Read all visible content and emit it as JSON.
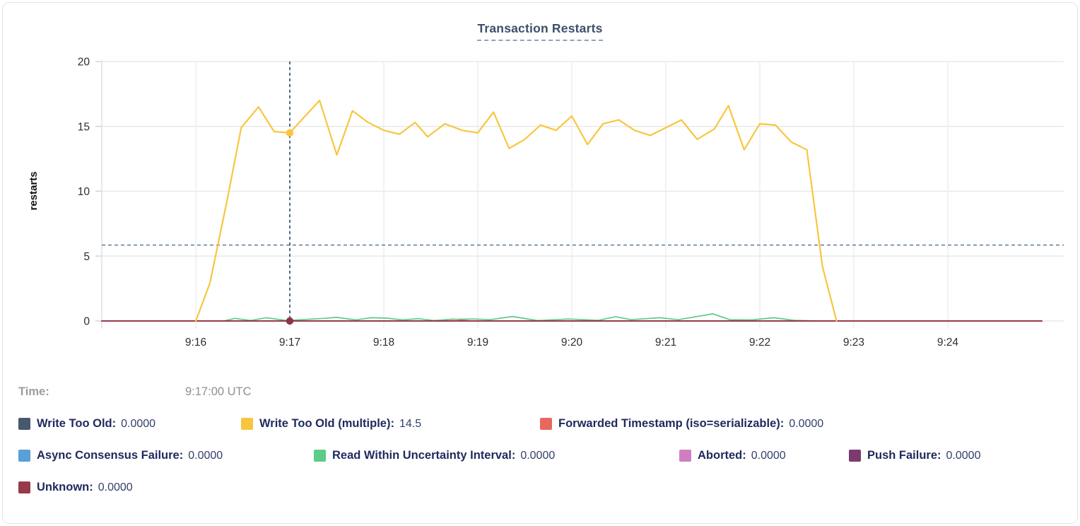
{
  "header": {
    "title": "Transaction Restarts"
  },
  "tooltip": {
    "time_label": "Time:",
    "time_value": "9:17:00 UTC"
  },
  "colors": {
    "write_too_old": "#475970",
    "write_too_old_multiple": "#f8c63e",
    "forwarded_timestamp": "#e8685f",
    "async_consensus_failure": "#5a9fd6",
    "read_within_uncertainty": "#5ecb86",
    "aborted": "#cf7fc1",
    "push_failure": "#7c3a70",
    "unknown": "#96394a",
    "crosshair_vertical": "#3c5a74",
    "crosshair_horizontal": "#6f8cab",
    "gridline": "#e9e9e9",
    "axis_line": "#e0e0e0"
  },
  "legend": {
    "rows": [
      [
        {
          "label": "Write Too Old:",
          "value": "0.0000",
          "color": "#475970"
        },
        {
          "label": "Write Too Old (multiple):",
          "value": "14.5",
          "color": "#f8c63e"
        },
        {
          "label": "Forwarded Timestamp (iso=serializable):",
          "value": "0.0000",
          "color": "#e8685f"
        }
      ],
      [
        {
          "label": "Async Consensus Failure:",
          "value": "0.0000",
          "color": "#5a9fd6"
        },
        {
          "label": "Read Within Uncertainty Interval:",
          "value": "0.0000",
          "color": "#5ecb86"
        },
        {
          "label": "Aborted:",
          "value": "0.0000",
          "color": "#cf7fc1"
        },
        {
          "label": "Push Failure:",
          "value": "0.0000",
          "color": "#7c3a70"
        }
      ],
      [
        {
          "label": "Unknown:",
          "value": "0.0000",
          "color": "#96394a"
        }
      ]
    ]
  },
  "chart_data": {
    "type": "line",
    "title": "Transaction Restarts",
    "xlabel": "",
    "ylabel": "restarts",
    "ylim": [
      0,
      20
    ],
    "y_ticks": [
      0,
      5,
      10,
      15,
      20
    ],
    "grid": true,
    "x_axis_note": "t = seconds after 9:15:00 UTC; plot domain 9:15:00 - ~9:25:10",
    "x_ticks": [
      {
        "t": 60,
        "label": "9:16"
      },
      {
        "t": 120,
        "label": "9:17"
      },
      {
        "t": 180,
        "label": "9:18"
      },
      {
        "t": 240,
        "label": "9:19"
      },
      {
        "t": 300,
        "label": "9:20"
      },
      {
        "t": 360,
        "label": "9:21"
      },
      {
        "t": 420,
        "label": "9:22"
      },
      {
        "t": 480,
        "label": "9:23"
      },
      {
        "t": 540,
        "label": "9:24"
      }
    ],
    "crosshair": {
      "x_t": 120,
      "x_time": "9:17:00 UTC",
      "h_value": 5.85
    },
    "markers": [
      {
        "t": 120,
        "v": 14.5,
        "color": "#f8c63e",
        "series": "write_too_old_multiple"
      },
      {
        "t": 120,
        "v": 0,
        "color": "#8e3446",
        "series": "unknown"
      }
    ],
    "series": [
      {
        "id": "write_too_old",
        "name": "Write Too Old",
        "color": "#475970",
        "hover_value": "0.0000",
        "points": [
          [
            0,
            0
          ],
          [
            600,
            0
          ]
        ]
      },
      {
        "id": "forwarded_timestamp",
        "name": "Forwarded Timestamp (iso=serializable)",
        "color": "#e8685f",
        "hover_value": "0.0000",
        "points": [
          [
            0,
            0
          ],
          [
            213,
            0
          ],
          [
            224,
            0.15
          ],
          [
            236,
            0
          ],
          [
            600,
            0
          ]
        ]
      },
      {
        "id": "async_consensus_failure",
        "name": "Async Consensus Failure",
        "color": "#5a9fd6",
        "hover_value": "0.0000",
        "points": [
          [
            0,
            0
          ],
          [
            600,
            0
          ]
        ]
      },
      {
        "id": "aborted",
        "name": "Aborted",
        "color": "#cf7fc1",
        "hover_value": "0.0000",
        "points": [
          [
            0,
            0
          ],
          [
            600,
            0
          ]
        ]
      },
      {
        "id": "push_failure",
        "name": "Push Failure",
        "color": "#7c3a70",
        "hover_value": "0.0000",
        "points": [
          [
            0,
            0
          ],
          [
            600,
            0
          ]
        ]
      },
      {
        "id": "read_within_uncertainty",
        "name": "Read Within Uncertainty Interval",
        "color": "#5ecb86",
        "hover_value": "0.0000",
        "points": [
          [
            60,
            0
          ],
          [
            78,
            0
          ],
          [
            85,
            0.2
          ],
          [
            95,
            0.04
          ],
          [
            105,
            0.25
          ],
          [
            118,
            0.04
          ],
          [
            130,
            0.12
          ],
          [
            142,
            0.2
          ],
          [
            150,
            0.28
          ],
          [
            162,
            0.08
          ],
          [
            172,
            0.25
          ],
          [
            182,
            0.22
          ],
          [
            192,
            0.08
          ],
          [
            202,
            0.18
          ],
          [
            212,
            0.04
          ],
          [
            222,
            0.12
          ],
          [
            237,
            0.15
          ],
          [
            248,
            0.1
          ],
          [
            262,
            0.35
          ],
          [
            278,
            0.03
          ],
          [
            298,
            0.15
          ],
          [
            317,
            0.05
          ],
          [
            328,
            0.33
          ],
          [
            338,
            0.1
          ],
          [
            356,
            0.25
          ],
          [
            368,
            0.1
          ],
          [
            390,
            0.55
          ],
          [
            401,
            0.1
          ],
          [
            415,
            0.08
          ],
          [
            429,
            0.25
          ],
          [
            442,
            0.05
          ],
          [
            458,
            0
          ],
          [
            468,
            0
          ]
        ]
      },
      {
        "id": "unknown",
        "name": "Unknown",
        "color": "#96394a",
        "hover_value": "0.0000",
        "points": [
          [
            0,
            0
          ],
          [
            600,
            0
          ]
        ]
      },
      {
        "id": "write_too_old_multiple",
        "name": "Write Too Old (multiple)",
        "color": "#f8c63e",
        "hover_value": "14.5",
        "points": [
          [
            60,
            0
          ],
          [
            69,
            2.9
          ],
          [
            80,
            9.3
          ],
          [
            89,
            14.9
          ],
          [
            100,
            16.5
          ],
          [
            110,
            14.6
          ],
          [
            120,
            14.5
          ],
          [
            139,
            17.0
          ],
          [
            150,
            12.8
          ],
          [
            160,
            16.2
          ],
          [
            170,
            15.3
          ],
          [
            180,
            14.7
          ],
          [
            190,
            14.4
          ],
          [
            200,
            15.3
          ],
          [
            208,
            14.2
          ],
          [
            219,
            15.2
          ],
          [
            230,
            14.7
          ],
          [
            240,
            14.5
          ],
          [
            250,
            16.1
          ],
          [
            260,
            13.3
          ],
          [
            270,
            14.0
          ],
          [
            280,
            15.1
          ],
          [
            290,
            14.7
          ],
          [
            300,
            15.8
          ],
          [
            310,
            13.6
          ],
          [
            320,
            15.2
          ],
          [
            330,
            15.5
          ],
          [
            340,
            14.7
          ],
          [
            350,
            14.3
          ],
          [
            360,
            14.9
          ],
          [
            370,
            15.5
          ],
          [
            380,
            14.0
          ],
          [
            391,
            14.8
          ],
          [
            400,
            16.6
          ],
          [
            410,
            13.2
          ],
          [
            420,
            15.2
          ],
          [
            430,
            15.1
          ],
          [
            440,
            13.8
          ],
          [
            450,
            13.2
          ],
          [
            460,
            4.2
          ],
          [
            469,
            0
          ]
        ]
      }
    ]
  }
}
